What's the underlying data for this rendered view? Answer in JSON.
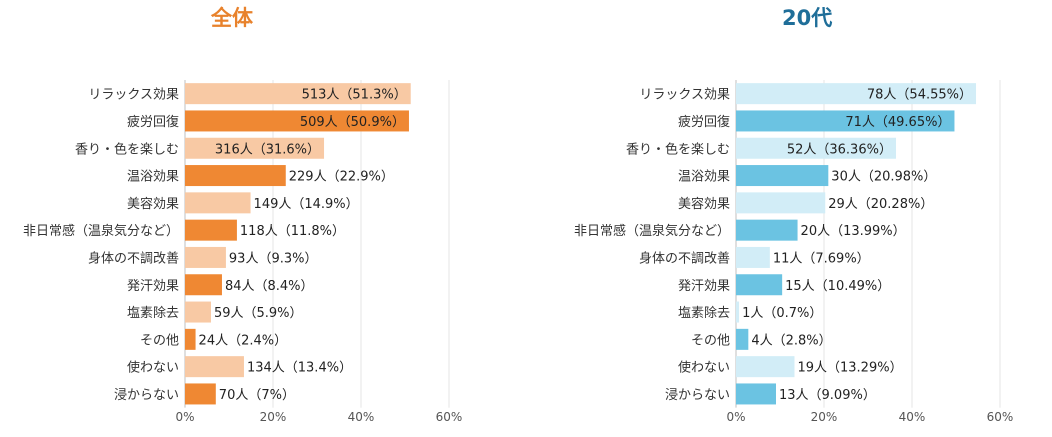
{
  "chart_data": [
    {
      "type": "bar",
      "orientation": "horizontal",
      "title": "全体",
      "title_color": "#E8822C",
      "colors": [
        "#F8C9A4",
        "#EF8833"
      ],
      "categories": [
        "リラックス効果",
        "疲労回復",
        "香り・色を楽しむ",
        "温浴効果",
        "美容効果",
        "非日常感（温泉気分など）",
        "身体の不調改善",
        "発汗効果",
        "塩素除去",
        "その他",
        "使わない",
        "浸からない"
      ],
      "values": [
        51.3,
        50.9,
        31.6,
        22.9,
        14.9,
        11.8,
        9.3,
        8.4,
        5.9,
        2.4,
        13.4,
        7
      ],
      "labels": [
        "513人（51.3%）",
        "509人（50.9%）",
        "316人（31.6%）",
        "229人（22.9%）",
        "149人（14.9%）",
        "118人（11.8%）",
        "93人（9.3%）",
        "84人（8.4%）",
        "59人（5.9%）",
        "24人（2.4%）",
        "134人（13.4%）",
        "70人（7%）"
      ],
      "xlim": [
        0,
        60
      ],
      "xticks": [
        "0%",
        "20%",
        "40%",
        "60%"
      ]
    },
    {
      "type": "bar",
      "orientation": "horizontal",
      "title": "20代",
      "title_color": "#1F6E99",
      "colors": [
        "#D2EDF7",
        "#6BC3E2"
      ],
      "categories": [
        "リラックス効果",
        "疲労回復",
        "香り・色を楽しむ",
        "温浴効果",
        "美容効果",
        "非日常感（温泉気分など）",
        "身体の不調改善",
        "発汗効果",
        "塩素除去",
        "その他",
        "使わない",
        "浸からない"
      ],
      "values": [
        54.55,
        49.65,
        36.36,
        20.98,
        20.28,
        13.99,
        7.69,
        10.49,
        0.7,
        2.8,
        13.29,
        9.09
      ],
      "labels": [
        "78人（54.55%）",
        "71人（49.65%）",
        "52人（36.36%）",
        "30人（20.98%）",
        "29人（20.28%）",
        "20人（13.99%）",
        "11人（7.69%）",
        "15人（10.49%）",
        "1人（0.7%）",
        "4人（2.8%）",
        "19人（13.29%）",
        "13人（9.09%）"
      ],
      "xlim": [
        0,
        60
      ],
      "xticks": [
        "0%",
        "20%",
        "40%",
        "60%"
      ]
    }
  ]
}
